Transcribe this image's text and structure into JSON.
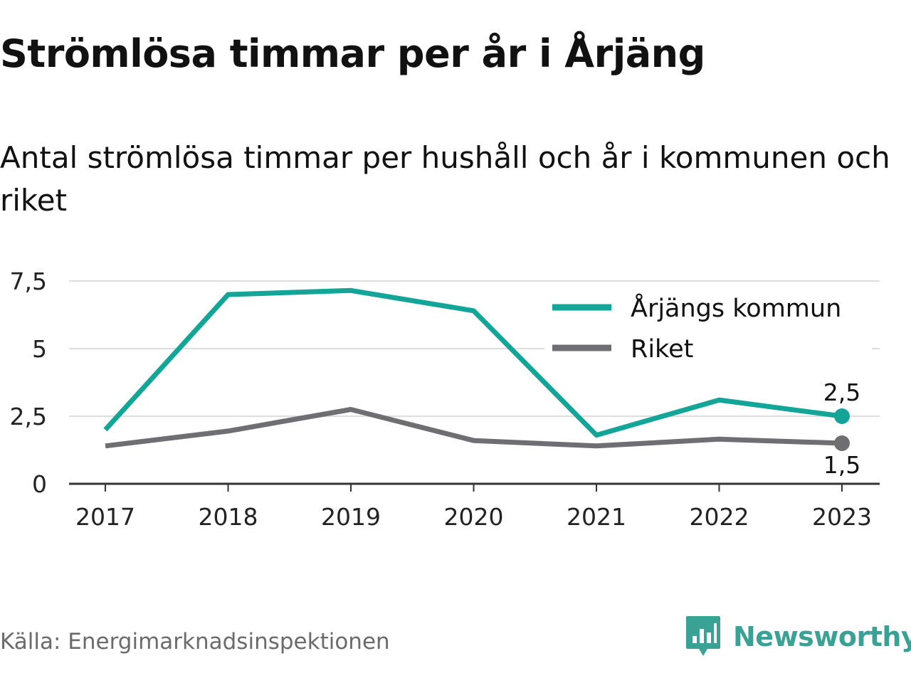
{
  "title": "Strömlösa timmar per år i Årjäng",
  "subtitle": "Antal strömlösa timmar per hushåll och år i kommunen och riket",
  "source": "Källa: Energimarknadsinspektionen",
  "brand": {
    "name": "Newsworthy",
    "icon": "newsworthy-logo-icon",
    "color": "#3aa195"
  },
  "chart_data": {
    "type": "line",
    "x": [
      "2017",
      "2018",
      "2019",
      "2020",
      "2021",
      "2022",
      "2023"
    ],
    "y_ticks": [
      0,
      2.5,
      5,
      7.5
    ],
    "y_tick_labels": [
      "0",
      "2,5",
      "5",
      "7,5"
    ],
    "ylim": [
      0,
      7.5
    ],
    "grid": true,
    "legend_position": "top-right",
    "series": [
      {
        "name": "Årjängs kommun",
        "color": "#13a597",
        "values": [
          2.0,
          7.0,
          7.15,
          6.4,
          1.8,
          3.1,
          2.5
        ],
        "end_label": "2,5"
      },
      {
        "name": "Riket",
        "color": "#6f6f73",
        "values": [
          1.4,
          1.95,
          2.75,
          1.6,
          1.4,
          1.65,
          1.5
        ],
        "end_label": "1,5"
      }
    ]
  }
}
